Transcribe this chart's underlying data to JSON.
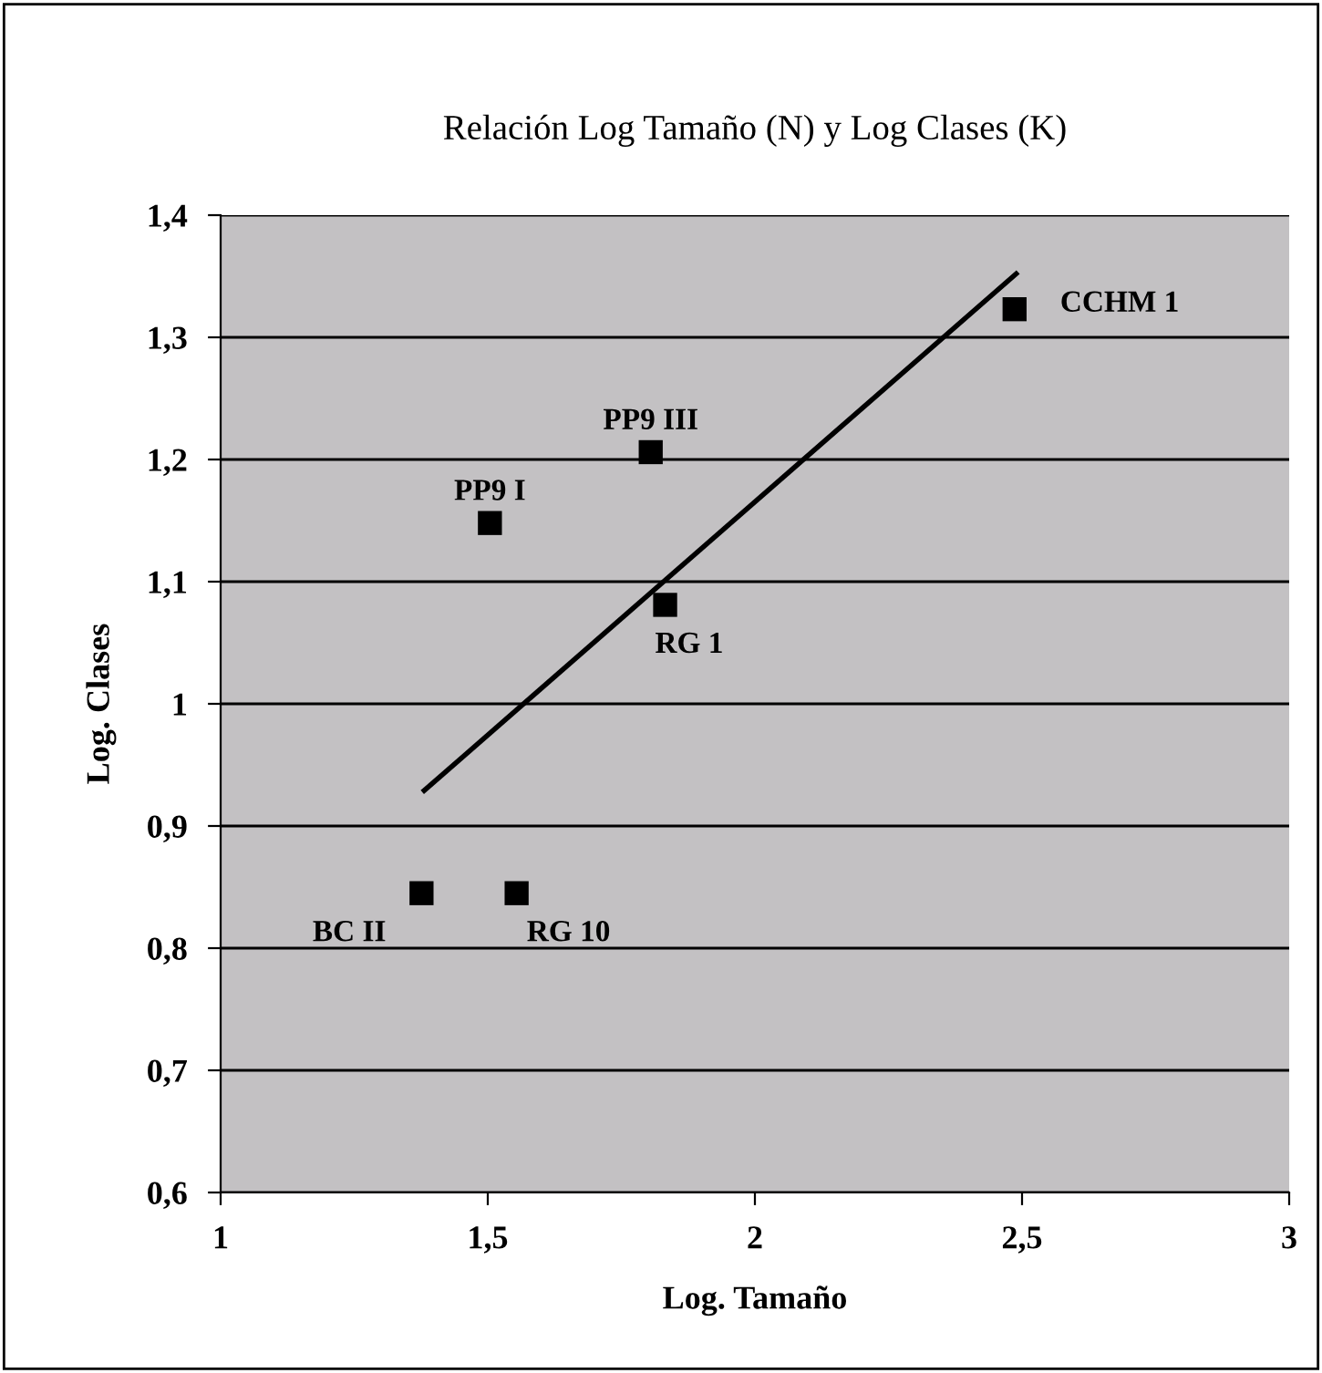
{
  "chart_data": {
    "type": "scatter",
    "title": "Relación Log Tamaño (N) y Log Clases (K)",
    "xlabel": "Log. Tamaño",
    "ylabel": "Log. Clases",
    "x": [
      1.376,
      1.504,
      1.554,
      1.805,
      1.832,
      2.486
    ],
    "series": [
      {
        "color": "#000000",
        "marker": "square",
        "values": [
          0.845,
          1.148,
          0.845,
          1.206,
          1.081,
          1.323
        ]
      },
      {
        "type": "line",
        "color": "#000000",
        "marker": "none",
        "x": [
          1.381,
          2.489
        ],
        "values": [
          0.929,
          1.352
        ]
      }
    ],
    "annotations": [
      {
        "text": "BC II",
        "x": 1.376,
        "y": 0.845
      },
      {
        "text": "PP9 I",
        "x": 1.504,
        "y": 1.148
      },
      {
        "text": "RG 10",
        "x": 1.554,
        "y": 0.845
      },
      {
        "text": "PP9 III",
        "x": 1.805,
        "y": 1.206
      },
      {
        "text": "RG 1",
        "x": 1.832,
        "y": 1.081
      },
      {
        "text": "CCHM 1",
        "x": 2.486,
        "y": 1.323
      }
    ],
    "xlim": [
      1,
      3
    ],
    "xticks": [
      1,
      {
        "value": 1.5,
        "label": "1,5"
      },
      2,
      {
        "value": 2.5,
        "label": "2,5"
      },
      3
    ],
    "ylim": [
      0.6,
      1.4
    ],
    "yticks": [
      {
        "value": 0.6,
        "label": "0,6"
      },
      {
        "value": 0.7,
        "label": "0,7"
      },
      {
        "value": 0.8,
        "label": "0,8"
      },
      {
        "value": 0.9,
        "label": "0,9"
      },
      1,
      {
        "value": 1.1,
        "label": "1,1"
      },
      {
        "value": 1.2,
        "label": "1,2"
      },
      {
        "value": 1.3,
        "label": "1,3"
      },
      {
        "value": 1.4,
        "label": "1,4"
      }
    ],
    "grid": "y",
    "legend": false
  }
}
